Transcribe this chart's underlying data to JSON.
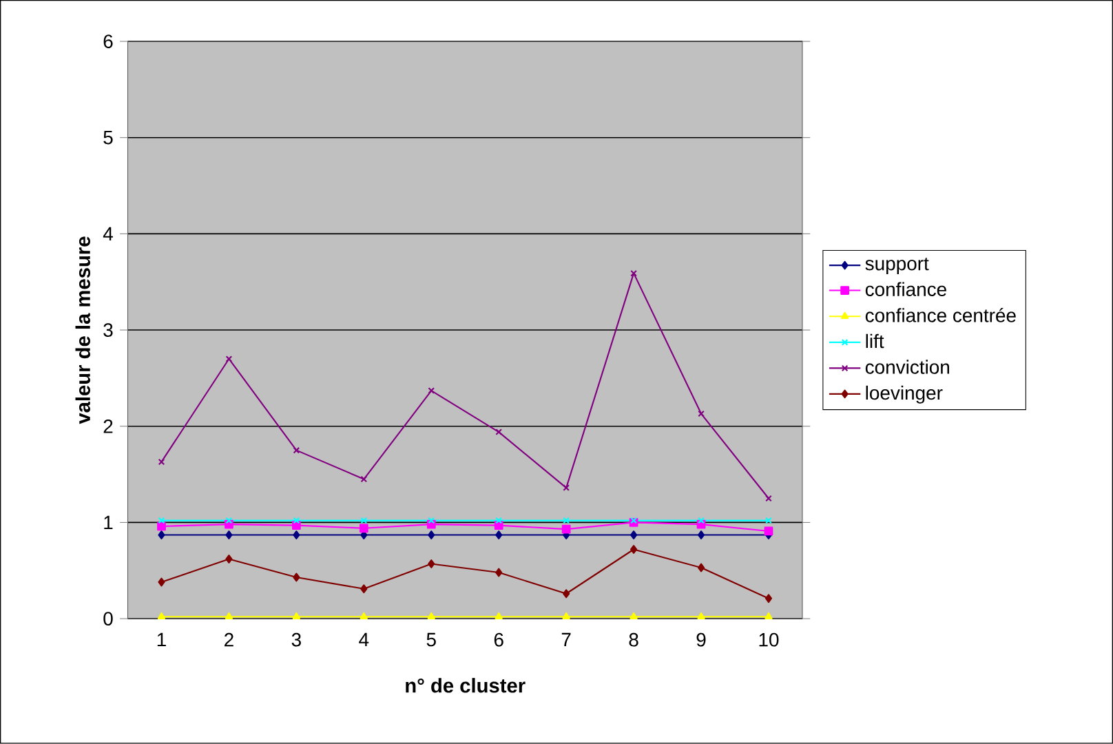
{
  "chart_data": {
    "type": "line",
    "xlabel": "n° de cluster",
    "ylabel": "valeur de la mesure",
    "categories": [
      "1",
      "2",
      "3",
      "4",
      "5",
      "6",
      "7",
      "8",
      "9",
      "10"
    ],
    "ylim": [
      0,
      6
    ],
    "yticks": [
      0,
      1,
      2,
      3,
      4,
      5,
      6
    ],
    "grid": "y",
    "legend": "right",
    "line_style": "solid",
    "series": [
      {
        "name": "support",
        "color": "#000080",
        "marker": "diamond",
        "values": [
          0.87,
          0.87,
          0.87,
          0.87,
          0.87,
          0.87,
          0.87,
          0.87,
          0.87,
          0.87
        ]
      },
      {
        "name": "confiance",
        "color": "#ff00ff",
        "marker": "square",
        "values": [
          0.96,
          0.98,
          0.97,
          0.94,
          0.98,
          0.97,
          0.93,
          1.0,
          0.98,
          0.91
        ]
      },
      {
        "name": "confiance centrée",
        "color": "#ffff00",
        "marker": "triangle",
        "values": [
          0.02,
          0.02,
          0.02,
          0.02,
          0.02,
          0.02,
          0.02,
          0.02,
          0.02,
          0.02
        ]
      },
      {
        "name": "lift",
        "color": "#00ffff",
        "marker": "cross",
        "values": [
          1.02,
          1.02,
          1.02,
          1.02,
          1.02,
          1.02,
          1.02,
          1.02,
          1.02,
          1.02
        ]
      },
      {
        "name": "conviction",
        "color": "#800080",
        "marker": "cross",
        "values": [
          1.63,
          2.7,
          1.75,
          1.45,
          2.37,
          1.94,
          1.36,
          3.59,
          2.13,
          1.25
        ]
      },
      {
        "name": "loevinger",
        "color": "#800000",
        "marker": "diamond",
        "values": [
          0.38,
          0.62,
          0.43,
          0.31,
          0.57,
          0.48,
          0.26,
          0.72,
          0.53,
          0.21
        ]
      }
    ]
  }
}
